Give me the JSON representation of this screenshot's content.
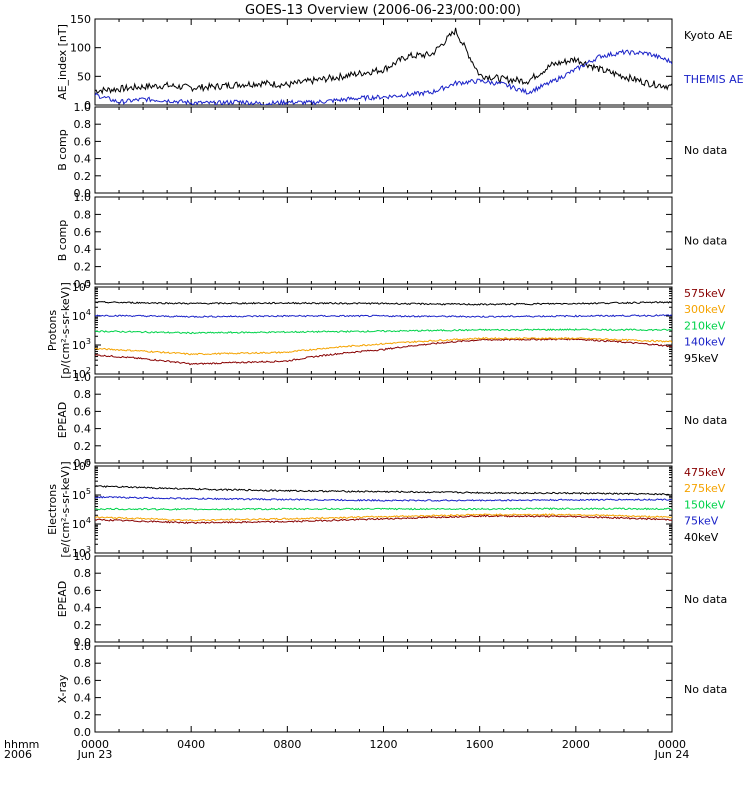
{
  "title": "GOES-13 Overview (2006-06-23/00:00:00)",
  "colors": {
    "black": "#000000",
    "blue": "#1a22c8",
    "green": "#00d34a",
    "orange": "#f5a300",
    "darkred": "#880000"
  },
  "no_data_label": "No data",
  "time_axis": {
    "row1_label": "hhmm",
    "row2_label": "2006",
    "ticks": [
      {
        "hhmm": "0000",
        "day": "Jun 23"
      },
      {
        "hhmm": "0400",
        "day": ""
      },
      {
        "hhmm": "0800",
        "day": ""
      },
      {
        "hhmm": "1200",
        "day": ""
      },
      {
        "hhmm": "1600",
        "day": ""
      },
      {
        "hhmm": "2000",
        "day": ""
      },
      {
        "hhmm": "0000",
        "day": "Jun 24"
      }
    ]
  },
  "chart_data": [
    {
      "type": "line",
      "ylabel": "AE_index [nT]",
      "yticks": [
        "0",
        "50",
        "100",
        "150"
      ],
      "ylim": [
        0,
        150
      ],
      "log": false,
      "x_hours": [
        0,
        1,
        2,
        3,
        4,
        5,
        6,
        7,
        8,
        9,
        10,
        11,
        12,
        13,
        14,
        15,
        16,
        17,
        18,
        19,
        20,
        21,
        22,
        23,
        24
      ],
      "series": [
        {
          "name": "Kyoto AE",
          "color": "black",
          "values": [
            25,
            28,
            32,
            34,
            30,
            32,
            36,
            38,
            35,
            42,
            48,
            55,
            62,
            85,
            88,
            130,
            52,
            45,
            42,
            70,
            80,
            62,
            50,
            38,
            32
          ]
        },
        {
          "name": "THEMIS AE",
          "color": "blue",
          "values": [
            18,
            5,
            10,
            8,
            4,
            3,
            6,
            2,
            5,
            4,
            8,
            12,
            14,
            18,
            22,
            38,
            42,
            36,
            22,
            40,
            62,
            85,
            92,
            90,
            75
          ]
        }
      ]
    },
    {
      "type": "line",
      "ylabel": "B comp",
      "yticks": [
        "0.0",
        "0.2",
        "0.4",
        "0.6",
        "0.8",
        "1.0"
      ],
      "ylim": [
        0,
        1
      ],
      "no_data": true
    },
    {
      "type": "line",
      "ylabel": "B comp",
      "yticks": [
        "0.0",
        "0.2",
        "0.4",
        "0.6",
        "0.8",
        "1.0"
      ],
      "ylim": [
        0,
        1
      ],
      "no_data": true
    },
    {
      "type": "line",
      "ylabel": "Protons",
      "ylabel2": "[p/(cm²-s-sr-keV)]",
      "ytick_exps": [
        "2",
        "3",
        "4",
        "5"
      ],
      "ylim": [
        100,
        100000
      ],
      "log": true,
      "x_hours": [
        0,
        4,
        8,
        12,
        16,
        20,
        24
      ],
      "series": [
        {
          "name": "575keV",
          "color": "darkred",
          "values": [
            450,
            220,
            280,
            700,
            1500,
            1600,
            900
          ]
        },
        {
          "name": "300keV",
          "color": "orange",
          "values": [
            750,
            480,
            560,
            1100,
            1700,
            1700,
            1300
          ]
        },
        {
          "name": "210keV",
          "color": "green",
          "values": [
            3000,
            2600,
            2800,
            3000,
            3300,
            3400,
            3300
          ]
        },
        {
          "name": "140keV",
          "color": "blue",
          "values": [
            10500,
            9500,
            10000,
            10000,
            9500,
            10000,
            10500
          ]
        },
        {
          "name": "95keV",
          "color": "black",
          "values": [
            30000,
            27000,
            28000,
            27000,
            25000,
            27000,
            30000
          ]
        }
      ]
    },
    {
      "type": "line",
      "ylabel": "EPEAD",
      "yticks": [
        "0.0",
        "0.2",
        "0.4",
        "0.6",
        "0.8",
        "1.0"
      ],
      "ylim": [
        0,
        1
      ],
      "no_data": true
    },
    {
      "type": "line",
      "ylabel": "Electrons",
      "ylabel2": "[e/(cm²-s-sr-keV)]",
      "ytick_exps": [
        "3",
        "4",
        "5",
        "6"
      ],
      "ylim": [
        1000,
        1000000
      ],
      "log": true,
      "x_hours": [
        0,
        4,
        8,
        12,
        16,
        20,
        24
      ],
      "series": [
        {
          "name": "475keV",
          "color": "darkred",
          "values": [
            14000,
            11000,
            12000,
            15000,
            19000,
            18000,
            14000
          ]
        },
        {
          "name": "275keV",
          "color": "orange",
          "values": [
            17000,
            13500,
            15000,
            18000,
            21000,
            21000,
            17000
          ]
        },
        {
          "name": "150keV",
          "color": "green",
          "values": [
            33000,
            32000,
            33000,
            33000,
            33000,
            34000,
            33000
          ]
        },
        {
          "name": "75keV",
          "color": "blue",
          "values": [
            85000,
            75000,
            70000,
            65000,
            65000,
            68000,
            70000
          ]
        },
        {
          "name": "40keV",
          "color": "black",
          "values": [
            200000,
            160000,
            140000,
            130000,
            120000,
            115000,
            105000
          ]
        }
      ]
    },
    {
      "type": "line",
      "ylabel": "EPEAD",
      "yticks": [
        "0.0",
        "0.2",
        "0.4",
        "0.6",
        "0.8",
        "1.0"
      ],
      "ylim": [
        0,
        1
      ],
      "no_data": true
    },
    {
      "type": "line",
      "ylabel": "X-ray",
      "yticks": [
        "0.0",
        "0.2",
        "0.4",
        "0.6",
        "0.8",
        "1.0"
      ],
      "ylim": [
        0,
        1
      ],
      "no_data": true
    }
  ]
}
